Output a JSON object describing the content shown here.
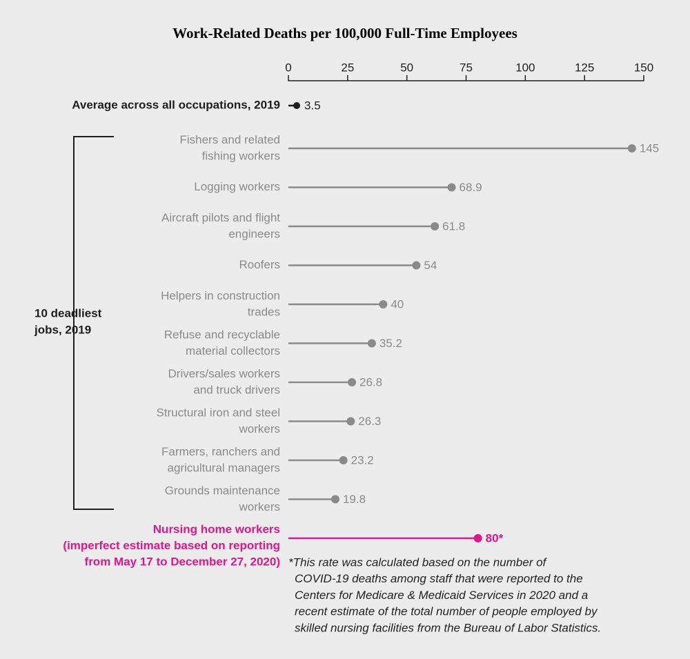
{
  "chart_data": {
    "type": "lollipop",
    "title": "Work-Related Deaths per 100,000 Full-Time Employees",
    "xlim": [
      0,
      150
    ],
    "xticks": [
      0,
      25,
      50,
      75,
      100,
      125,
      150
    ],
    "axis_position": "top",
    "categories": [
      [
        "Average across all occupations, 2019"
      ],
      [
        "Fishers and related",
        "fishing workers"
      ],
      [
        "Logging workers"
      ],
      [
        "Aircraft pilots and flight",
        "engineers"
      ],
      [
        "Roofers"
      ],
      [
        "Helpers in construction",
        "trades"
      ],
      [
        "Refuse and recyclable",
        "material collectors"
      ],
      [
        "Drivers/sales workers",
        "and truck drivers"
      ],
      [
        "Structural iron and steel",
        "workers"
      ],
      [
        "Farmers, ranchers and",
        "agricultural managers"
      ],
      [
        "Grounds maintenance",
        "workers"
      ],
      [
        "Nursing home workers",
        "(imperfect estimate based on reporting",
        "from May 17 to December 27, 2020)"
      ]
    ],
    "values": [
      3.5,
      145,
      68.9,
      61.8,
      54,
      40,
      35.2,
      26.8,
      26.3,
      23.2,
      19.8,
      80
    ],
    "value_labels": [
      "3.5",
      "145",
      "68.9",
      "61.8",
      "54",
      "40",
      "35.2",
      "26.8",
      "26.3",
      "23.2",
      "19.8",
      "80*"
    ],
    "colors": [
      "#1e1e1e",
      "#8a8a8a",
      "#8a8a8a",
      "#8a8a8a",
      "#8a8a8a",
      "#8a8a8a",
      "#8a8a8a",
      "#8a8a8a",
      "#8a8a8a",
      "#8a8a8a",
      "#8a8a8a",
      "#e0168a"
    ],
    "bracket_label": [
      "10 deadliest",
      "jobs, 2019"
    ],
    "footnote": [
      "*This rate was calculated based on the number of",
      "COVID-19 deaths among staff that were reported to the",
      "Centers for Medicare & Medicaid Services in 2020 and a",
      "recent estimate of the total number of people employed by",
      "skilled nursing facilities from the Bureau of Labor Statistics."
    ]
  }
}
